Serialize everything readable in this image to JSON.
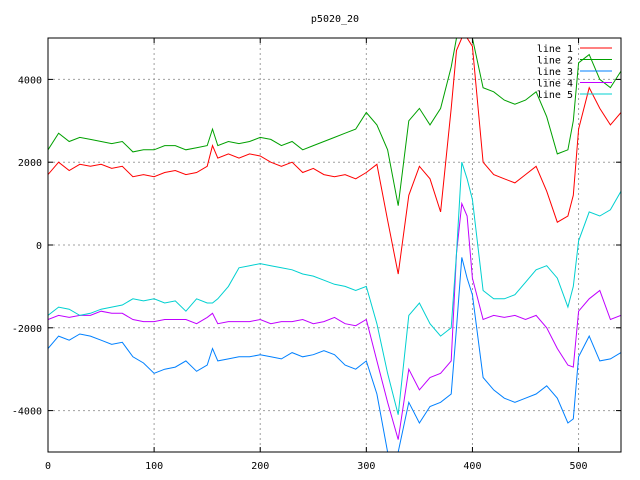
{
  "chart_data": {
    "type": "line",
    "title": "p5020_20",
    "xlabel": "",
    "ylabel": "",
    "xlim": [
      0,
      540
    ],
    "ylim": [
      -5000,
      5000
    ],
    "xticks": [
      0,
      100,
      200,
      300,
      400,
      500
    ],
    "yticks": [
      -4000,
      -2000,
      0,
      2000,
      4000
    ],
    "grid": true,
    "legend_position": "top-right",
    "x": [
      0,
      10,
      20,
      30,
      40,
      50,
      60,
      70,
      80,
      90,
      100,
      110,
      120,
      130,
      140,
      150,
      155,
      160,
      170,
      180,
      190,
      200,
      210,
      220,
      230,
      240,
      250,
      260,
      270,
      280,
      290,
      300,
      310,
      320,
      330,
      340,
      350,
      360,
      370,
      380,
      385,
      390,
      395,
      400,
      410,
      420,
      430,
      440,
      450,
      460,
      470,
      480,
      490,
      495,
      500,
      510,
      520,
      530,
      540
    ],
    "series": [
      {
        "name": "line 1",
        "color": "#ff0000",
        "values": [
          1700,
          2000,
          1800,
          1950,
          1900,
          1950,
          1850,
          1900,
          1650,
          1700,
          1650,
          1750,
          1800,
          1700,
          1750,
          1900,
          2400,
          2100,
          2200,
          2100,
          2200,
          2150,
          2000,
          1900,
          2000,
          1750,
          1850,
          1700,
          1650,
          1700,
          1600,
          1750,
          1950,
          600,
          -700,
          1200,
          1900,
          1600,
          800,
          3300,
          4700,
          5000,
          5000,
          4800,
          2000,
          1700,
          1600,
          1500,
          1700,
          1900,
          1300,
          550,
          700,
          1200,
          2800,
          3800,
          3300,
          2900,
          3200
        ]
      },
      {
        "name": "line 2",
        "color": "#00a000",
        "values": [
          2300,
          2700,
          2500,
          2600,
          2550,
          2500,
          2450,
          2500,
          2250,
          2300,
          2300,
          2400,
          2400,
          2300,
          2350,
          2400,
          2800,
          2400,
          2500,
          2450,
          2500,
          2600,
          2550,
          2400,
          2500,
          2300,
          2400,
          2500,
          2600,
          2700,
          2800,
          3200,
          2900,
          2300,
          950,
          3000,
          3300,
          2900,
          3300,
          4300,
          5000,
          5000,
          5000,
          5000,
          3800,
          3700,
          3500,
          3400,
          3500,
          3700,
          3100,
          2200,
          2300,
          3000,
          4400,
          4600,
          4000,
          3800,
          4200
        ]
      },
      {
        "name": "line 3",
        "color": "#0080ff",
        "values": [
          -2500,
          -2200,
          -2300,
          -2150,
          -2200,
          -2300,
          -2400,
          -2350,
          -2700,
          -2850,
          -3100,
          -3000,
          -2950,
          -2800,
          -3050,
          -2900,
          -2500,
          -2800,
          -2750,
          -2700,
          -2700,
          -2650,
          -2700,
          -2750,
          -2600,
          -2700,
          -2650,
          -2550,
          -2650,
          -2900,
          -3000,
          -2800,
          -3600,
          -5000,
          -5000,
          -3800,
          -4300,
          -3900,
          -3800,
          -3600,
          -2000,
          -300,
          -800,
          -1200,
          -3200,
          -3500,
          -3700,
          -3800,
          -3700,
          -3600,
          -3400,
          -3700,
          -4300,
          -4200,
          -2700,
          -2200,
          -2800,
          -2750,
          -2600
        ]
      },
      {
        "name": "line 4",
        "color": "#c000ff",
        "values": [
          -1800,
          -1700,
          -1750,
          -1700,
          -1700,
          -1600,
          -1650,
          -1650,
          -1800,
          -1850,
          -1850,
          -1800,
          -1800,
          -1800,
          -1900,
          -1750,
          -1650,
          -1900,
          -1850,
          -1850,
          -1850,
          -1800,
          -1900,
          -1850,
          -1850,
          -1800,
          -1900,
          -1850,
          -1750,
          -1900,
          -1950,
          -1800,
          -2800,
          -3800,
          -4700,
          -3000,
          -3500,
          -3200,
          -3100,
          -2800,
          -200,
          1000,
          700,
          -800,
          -1800,
          -1700,
          -1750,
          -1700,
          -1800,
          -1700,
          -2000,
          -2500,
          -2900,
          -2950,
          -1600,
          -1300,
          -1100,
          -1800,
          -1700
        ]
      },
      {
        "name": "line 5",
        "color": "#00d0d0",
        "values": [
          -1700,
          -1500,
          -1550,
          -1700,
          -1650,
          -1550,
          -1500,
          -1450,
          -1300,
          -1350,
          -1300,
          -1400,
          -1350,
          -1600,
          -1300,
          -1400,
          -1400,
          -1300,
          -1000,
          -550,
          -500,
          -450,
          -500,
          -550,
          -600,
          -700,
          -750,
          -850,
          -950,
          -1000,
          -1100,
          -1000,
          -1900,
          -3100,
          -4100,
          -1700,
          -1400,
          -1900,
          -2200,
          -2000,
          -200,
          2000,
          1600,
          1100,
          -1100,
          -1300,
          -1300,
          -1200,
          -900,
          -600,
          -500,
          -800,
          -1500,
          -1000,
          100,
          800,
          700,
          850,
          1300
        ]
      }
    ]
  }
}
